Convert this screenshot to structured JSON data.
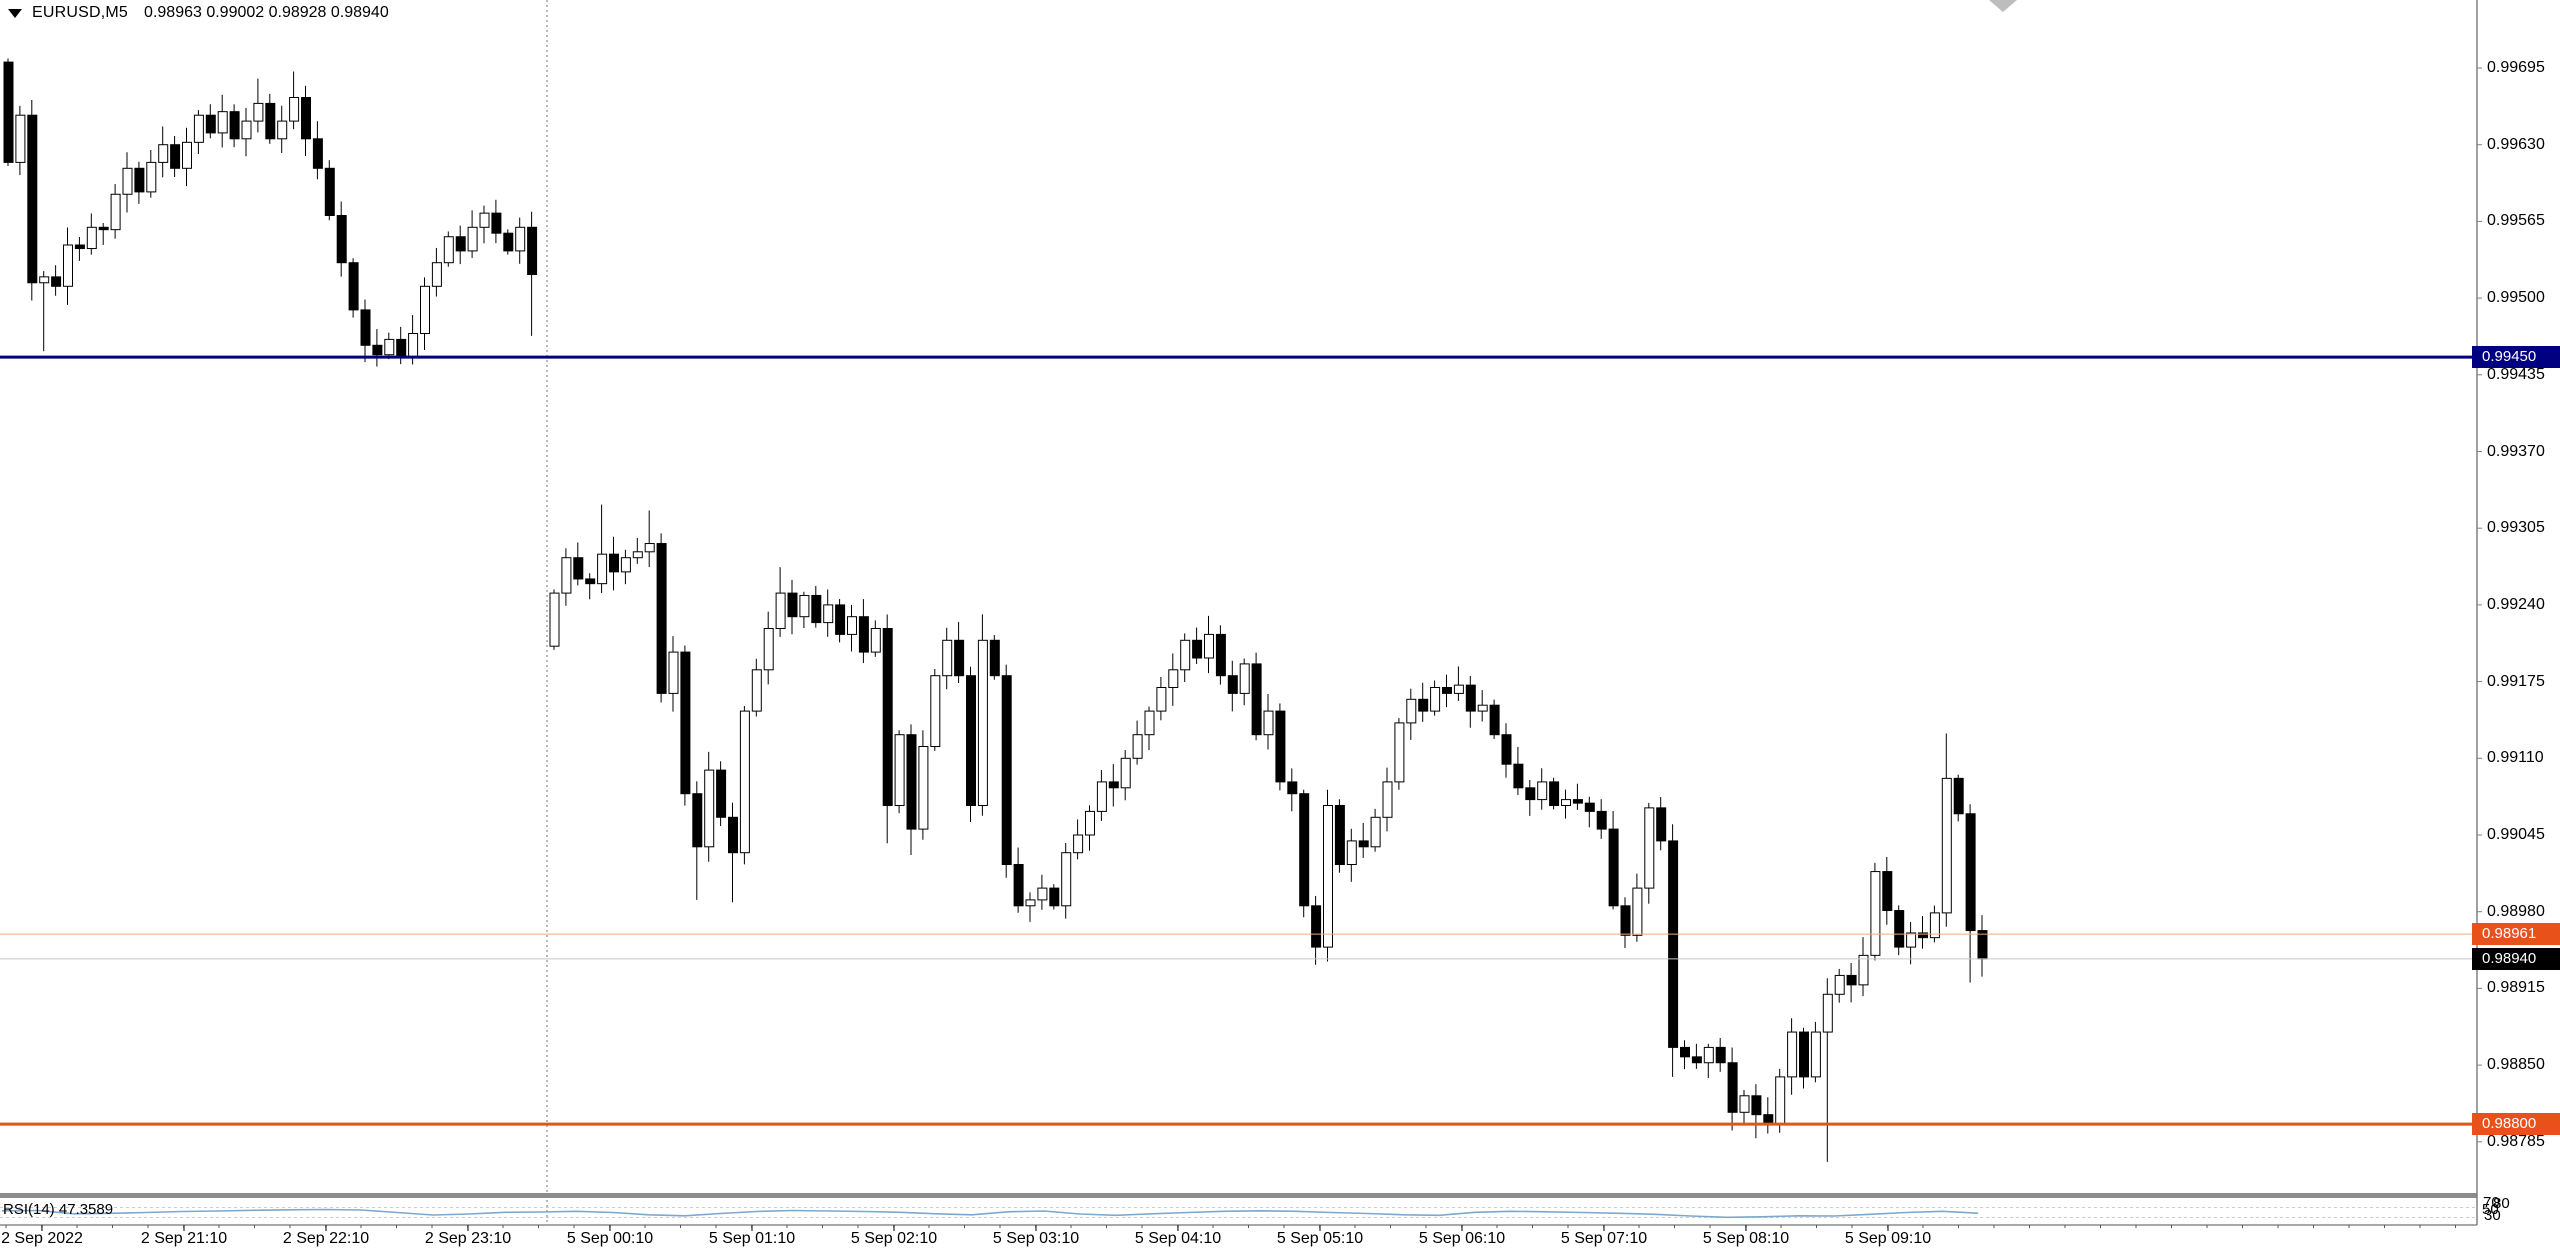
{
  "window": {
    "symbol": "EURUSD,M5",
    "ohlc": "0.98963 0.99002 0.98928 0.98940",
    "dropdown_icon": "down-triangle-icon",
    "shift_marker_icon": "chart-shift-triangle"
  },
  "colors": {
    "background": "#ffffff",
    "axis_line": "#808080",
    "candle_bear": "#000000",
    "candle_bull": "#ffffff",
    "candle_border": "#000000",
    "resistance_line": "#000080",
    "support_line": "#e8521a",
    "ask_line": "#e6af85",
    "bid_line": "#c6c6c6",
    "rsi_line": "#7ca8cf",
    "rsi_level_dash": "#cccccc",
    "separator": "#8c8c8c",
    "day_separator": "#707070",
    "shift_marker": "#bdbdbd"
  },
  "price_axis": {
    "ticks": [
      "0.99695",
      "0.99630",
      "0.99565",
      "0.99500",
      "0.99435",
      "0.99370",
      "0.99305",
      "0.99240",
      "0.99175",
      "0.99110",
      "0.99045",
      "0.98980",
      "0.98915",
      "0.98850",
      "0.98785"
    ],
    "tags": [
      {
        "text": "0.99450",
        "price": 0.9945,
        "bg": "#000080",
        "fg": "#ffffff",
        "name": "resistance-price-tag"
      },
      {
        "text": "0.98961",
        "price": 0.98961,
        "bg": "#e8521a",
        "fg": "#ffffff",
        "name": "ask-price-tag"
      },
      {
        "text": "0.98940",
        "price": 0.9894,
        "bg": "#000000",
        "fg": "#ffffff",
        "name": "bid-price-tag"
      },
      {
        "text": "0.98800",
        "price": 0.988,
        "bg": "#e8521a",
        "fg": "#ffffff",
        "name": "support-price-tag"
      }
    ]
  },
  "hlines": [
    {
      "name": "resistance-hline",
      "price": 0.9945,
      "color": "#000080",
      "width": 3,
      "interactable": true
    },
    {
      "name": "ask-hline",
      "price": 0.98961,
      "color": "#e6af85",
      "width": 1,
      "interactable": false
    },
    {
      "name": "bid-hline",
      "price": 0.9894,
      "color": "#c6c6c6",
      "width": 1,
      "interactable": false
    },
    {
      "name": "support-hline",
      "price": 0.988,
      "color": "#e8521a",
      "width": 3,
      "interactable": true
    }
  ],
  "time_axis": {
    "labels": [
      "2 Sep 2022",
      "2 Sep 21:10",
      "2 Sep 22:10",
      "2 Sep 23:10",
      "5 Sep 00:10",
      "5 Sep 01:10",
      "5 Sep 02:10",
      "5 Sep 03:10",
      "5 Sep 04:10",
      "5 Sep 05:10",
      "5 Sep 06:10",
      "5 Sep 07:10",
      "5 Sep 08:10",
      "5 Sep 09:10"
    ]
  },
  "indicator": {
    "label": "RSI(14) 47.3589",
    "name": "RSI",
    "period": 14,
    "last_value": "47.3589",
    "levels": [
      70,
      30
    ],
    "axis_jumble": [
      "70",
      "80",
      "50",
      "30"
    ],
    "samples_per_point": 3,
    "values": [
      57,
      58,
      45,
      47,
      50,
      54,
      56,
      59,
      61,
      62,
      60,
      50,
      40,
      44,
      51,
      52,
      55,
      50,
      41,
      37,
      46,
      54,
      58,
      56,
      54,
      51,
      45,
      41,
      53,
      56,
      44,
      39,
      45,
      50,
      55,
      57,
      55,
      50,
      46,
      41,
      39,
      51,
      55,
      53,
      50,
      47,
      43,
      36,
      31,
      33,
      37,
      36,
      43,
      50,
      55,
      47.4
    ]
  },
  "chart_data": {
    "type": "candlestick",
    "symbol": "EURUSD",
    "timeframe": "M5",
    "price_range_visible": [
      0.98745,
      0.9972
    ],
    "sessions": [
      {
        "date": "2 Sep 2022",
        "first_open": 0.997,
        "closes": [
          0.99615,
          0.99655,
          0.99513,
          0.99518,
          0.9951,
          0.99545,
          0.99542,
          0.9956,
          0.99558,
          0.99588,
          0.9961,
          0.9959,
          0.99615,
          0.9963,
          0.9961,
          0.99632,
          0.99655,
          0.9964,
          0.99658,
          0.99635,
          0.9965,
          0.99665,
          0.99635,
          0.9965,
          0.9967,
          0.99635,
          0.9961,
          0.9957,
          0.9953,
          0.9949,
          0.9946,
          0.99452,
          0.99465,
          0.9945,
          0.9947,
          0.9951,
          0.9953,
          0.99552,
          0.9954,
          0.9956,
          0.99572,
          0.99555,
          0.9954,
          0.9956,
          0.9952
        ],
        "wick_overrides": {
          "2": {
            "lo": 0.99498
          },
          "3": {
            "lo": 0.99455
          },
          "21": {
            "hi": 0.99686
          },
          "24": {
            "hi": 0.99692
          },
          "31": {
            "lo": 0.99442
          },
          "33": {
            "lo": 0.99444
          },
          "44": {
            "lo": 0.99468
          }
        }
      },
      {
        "date": "5 Sep 2022",
        "first_open": 0.99205,
        "closes": [
          0.9925,
          0.9928,
          0.99262,
          0.99258,
          0.99283,
          0.99268,
          0.9928,
          0.99285,
          0.99292,
          0.99165,
          0.992,
          0.9908,
          0.99035,
          0.991,
          0.9906,
          0.9903,
          0.9915,
          0.99185,
          0.9922,
          0.9925,
          0.9923,
          0.99248,
          0.99225,
          0.9924,
          0.99215,
          0.9923,
          0.992,
          0.9922,
          0.9907,
          0.9913,
          0.9905,
          0.9912,
          0.9918,
          0.9921,
          0.9918,
          0.9907,
          0.9921,
          0.9918,
          0.9902,
          0.98985,
          0.9899,
          0.99,
          0.98985,
          0.9903,
          0.99045,
          0.99065,
          0.9909,
          0.99085,
          0.9911,
          0.9913,
          0.9915,
          0.9917,
          0.99185,
          0.9921,
          0.99195,
          0.99215,
          0.9918,
          0.99165,
          0.9919,
          0.9913,
          0.9915,
          0.9909,
          0.9908,
          0.98985,
          0.9895,
          0.9907,
          0.9902,
          0.9904,
          0.99035,
          0.9906,
          0.9909,
          0.9914,
          0.9916,
          0.9915,
          0.9917,
          0.99165,
          0.99172,
          0.9915,
          0.99155,
          0.9913,
          0.99105,
          0.99085,
          0.99075,
          0.9909,
          0.9907,
          0.99075,
          0.99072,
          0.99065,
          0.9905,
          0.98985,
          0.9896,
          0.99,
          0.99068,
          0.9904,
          0.98865,
          0.98857,
          0.98852,
          0.98865,
          0.98852,
          0.9881,
          0.98824,
          0.98808,
          0.988,
          0.9884,
          0.98878,
          0.9884,
          0.98878,
          0.9891,
          0.98926,
          0.98918,
          0.98943,
          0.99014,
          0.98981,
          0.9895,
          0.98962,
          0.98958,
          0.98979,
          0.99093,
          0.99063,
          0.98964,
          0.9894
        ],
        "wick_overrides": {
          "4": {
            "hi": 0.99325
          },
          "8": {
            "hi": 0.9932
          },
          "12": {
            "lo": 0.9899
          },
          "15": {
            "lo": 0.98988
          },
          "19": {
            "hi": 0.99272
          },
          "28": {
            "lo": 0.99038
          },
          "30": {
            "lo": 0.99028
          },
          "36": {
            "hi": 0.99232
          },
          "64": {
            "lo": 0.98935
          },
          "94": {
            "lo": 0.9884
          },
          "101": {
            "lo": 0.98788
          },
          "102": {
            "lo": 0.98792
          },
          "107": {
            "lo": 0.98768
          },
          "117": {
            "hi": 0.99131
          },
          "119": {
            "lo": 0.9892
          },
          "120": {
            "lo": 0.98925
          }
        }
      }
    ]
  }
}
